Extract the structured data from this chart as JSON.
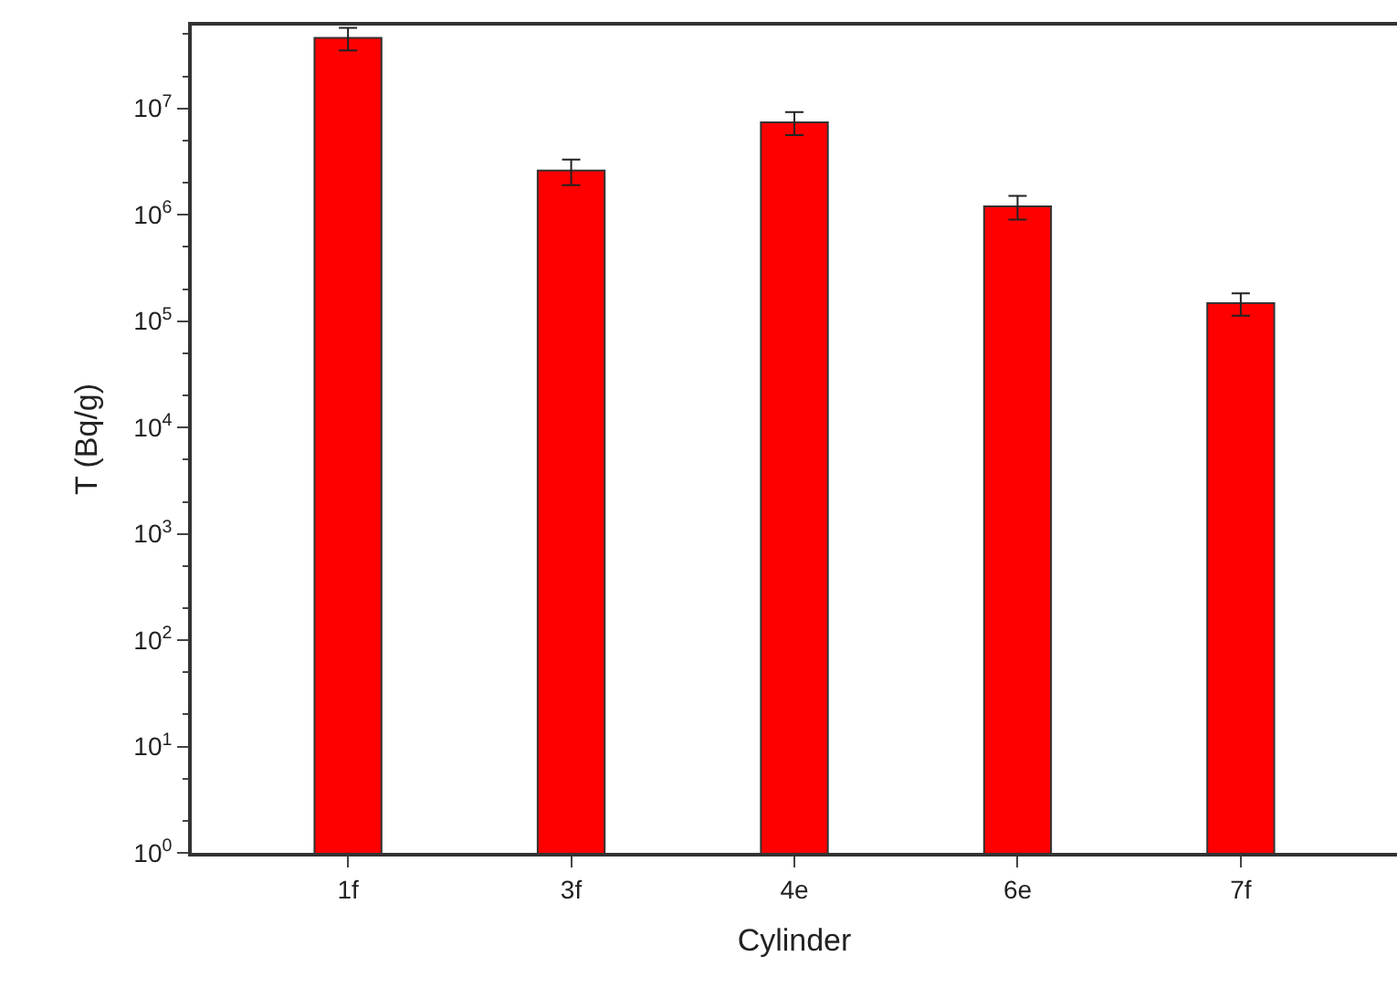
{
  "chart_data": {
    "type": "bar",
    "xlabel": "Cylinder",
    "ylabel": "T (Bq/g)",
    "categories": [
      "1f",
      "3f",
      "4e",
      "6e",
      "7f"
    ],
    "values": [
      46000000,
      2600000,
      7400000,
      1200000,
      147000
    ],
    "errors": [
      11000000,
      700000,
      1800000,
      300000,
      35000
    ],
    "color": "#ff0000",
    "log": true,
    "ylim": [
      1,
      60000000
    ],
    "yticks": [
      {
        "value": 1,
        "label": "10$^{0}$"
      },
      {
        "value": 10,
        "label": "10$^{1}$"
      },
      {
        "value": 100,
        "label": "10$^{2}$"
      },
      {
        "value": 1000,
        "label": "10$^{3}$"
      },
      {
        "value": 10000,
        "label": "10$^{4}$"
      },
      {
        "value": 100000,
        "label": "10$^{5}$"
      },
      {
        "value": 1000000,
        "label": "10$^{6}$"
      },
      {
        "value": 10000000,
        "label": "10$^{7}$"
      }
    ]
  }
}
